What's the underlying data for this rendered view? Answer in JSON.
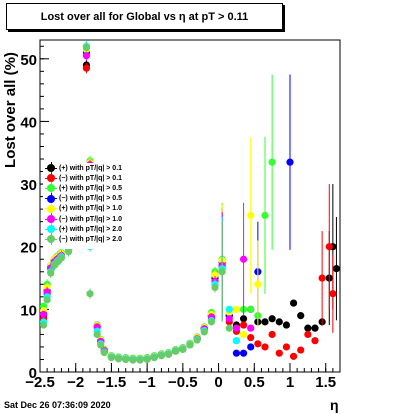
{
  "header": {
    "title": "Lost over all for Global vs   η at pT > 0.11",
    "footer": "Sat Dec 26 07:36:09 2020"
  },
  "chart_data": {
    "type": "scatter",
    "title": "Lost over all for Global vs   η at pT > 0.11",
    "xlabel": "η",
    "ylabel": "Lost over all (%)",
    "xlim": [
      -2.5,
      1.7
    ],
    "ylim": [
      0,
      53
    ],
    "x_ticks": [
      -2.5,
      -2,
      -1.5,
      -1,
      -0.5,
      0,
      0.5,
      1,
      1.5
    ],
    "x_tick_labels": [
      "−2.5",
      "−2",
      "−1.5",
      "−1",
      "−0.5",
      "0",
      "0.5",
      "1",
      "1.5"
    ],
    "y_ticks": [
      0,
      10,
      20,
      30,
      40,
      50
    ],
    "y_tick_labels": [
      "0",
      "10",
      "20",
      "30",
      "40",
      "50"
    ],
    "grid": false,
    "legend_position": "left-middle",
    "series": [
      {
        "name": "(+) with pT/|q| > 0.1",
        "color": "#000000",
        "x": [
          -2.45,
          -2.4,
          -2.35,
          -2.3,
          -2.25,
          -2.2,
          -2.1,
          -1.85,
          -1.8,
          -1.7,
          -1.65,
          -1.6,
          -1.5,
          -1.4,
          -1.3,
          -1.2,
          -1.1,
          -1.0,
          -0.9,
          -0.8,
          -0.7,
          -0.6,
          -0.5,
          -0.4,
          -0.3,
          -0.2,
          -0.1,
          -0.05,
          0.05,
          0.15,
          0.25,
          0.35,
          0.45,
          0.55,
          0.65,
          0.75,
          0.85,
          0.95,
          1.05,
          1.15,
          1.25,
          1.35,
          1.45,
          1.55,
          1.6,
          1.65
        ],
        "y": [
          9,
          13,
          17,
          18,
          18.5,
          19,
          20,
          49,
          33.5,
          7.5,
          5,
          3.5,
          2.5,
          2.3,
          2.2,
          2.1,
          2.1,
          2.2,
          2.5,
          2.8,
          3,
          3.5,
          3.8,
          4.5,
          5.5,
          7,
          9,
          15,
          17,
          9,
          7.5,
          8.5,
          10,
          8,
          8,
          8.5,
          8,
          7.5,
          11,
          9,
          7,
          7,
          8,
          15,
          20,
          16.5
        ]
      },
      {
        "name": "(−) with pT/|q| > 0.1",
        "color": "#ff0000",
        "x": [
          -2.45,
          -2.4,
          -2.35,
          -2.3,
          -2.25,
          -2.2,
          -2.1,
          -1.85,
          -1.8,
          -1.7,
          -1.65,
          -1.6,
          -1.5,
          -1.4,
          -1.3,
          -1.2,
          -1.1,
          -1.0,
          -0.9,
          -0.8,
          -0.7,
          -0.6,
          -0.5,
          -0.4,
          -0.3,
          -0.2,
          -0.1,
          -0.05,
          0.05,
          0.15,
          0.25,
          0.35,
          0.45,
          0.55,
          0.65,
          0.75,
          0.85,
          0.95,
          1.05,
          1.15,
          1.25,
          1.35,
          1.45,
          1.55,
          1.6
        ],
        "y": [
          8.5,
          12.5,
          16.5,
          17.5,
          18,
          18.5,
          19.5,
          48.5,
          33,
          7.2,
          4.8,
          3.4,
          2.4,
          2.2,
          2.1,
          2.0,
          2.0,
          2.1,
          2.4,
          2.7,
          2.9,
          3.4,
          3.7,
          4.4,
          5.3,
          6.8,
          8.5,
          14,
          16.5,
          8,
          6.5,
          7.5,
          5.5,
          4.5,
          4,
          6,
          3,
          4,
          2.5,
          3.5,
          6,
          5,
          15,
          20,
          12.5
        ]
      },
      {
        "name": "(+) with pT/|q| > 0.5",
        "color": "#33ff33",
        "x": [
          -2.45,
          -2.4,
          -2.35,
          -2.3,
          -2.25,
          -2.2,
          -2.1,
          -1.85,
          -1.8,
          -1.7,
          -1.65,
          -1.6,
          -1.5,
          -1.4,
          -1.3,
          -1.2,
          -1.1,
          -1.0,
          -0.9,
          -0.8,
          -0.7,
          -0.6,
          -0.5,
          -0.4,
          -0.3,
          -0.2,
          -0.1,
          -0.05,
          0.05,
          0.15,
          0.25,
          0.35,
          0.45,
          0.55,
          0.65,
          0.75
        ],
        "y": [
          10.5,
          14,
          17,
          18,
          18.5,
          19,
          20,
          52,
          33.7,
          7.5,
          5.2,
          3.6,
          2.6,
          2.4,
          2.3,
          2.2,
          2.2,
          2.3,
          2.6,
          2.9,
          3.1,
          3.6,
          3.9,
          4.6,
          5.6,
          7.2,
          9.5,
          16,
          18,
          10,
          5,
          10,
          10,
          9,
          25,
          33.5
        ]
      },
      {
        "name": "(−) with pT/|q| > 0.5",
        "color": "#0000ff",
        "x": [
          -2.45,
          -2.4,
          -2.35,
          -2.3,
          -2.25,
          -2.2,
          -2.1,
          -1.85,
          -1.8,
          -1.7,
          -1.65,
          -1.6,
          -1.5,
          -1.4,
          -1.3,
          -1.2,
          -1.1,
          -1.0,
          -0.9,
          -0.8,
          -0.7,
          -0.6,
          -0.5,
          -0.4,
          -0.3,
          -0.2,
          -0.1,
          -0.05,
          0.05,
          0.15,
          0.25,
          0.35,
          0.45,
          0.55,
          1.0
        ],
        "y": [
          9.5,
          13,
          16.8,
          17.8,
          18.3,
          18.8,
          19.8,
          51,
          33.2,
          7.3,
          5,
          3.5,
          2.5,
          2.3,
          2.2,
          2.1,
          2.1,
          2.2,
          2.5,
          2.8,
          3,
          3.5,
          3.8,
          4.5,
          5.4,
          7,
          9,
          15.5,
          17.5,
          9,
          3,
          3,
          4,
          16,
          33.5
        ]
      },
      {
        "name": "(+) with pT/|q| > 1.0",
        "color": "#ffff00",
        "x": [
          -2.45,
          -2.4,
          -2.35,
          -2.3,
          -2.25,
          -2.2,
          -2.1,
          -1.85,
          -1.8,
          -1.7,
          -1.65,
          -1.6,
          -1.5,
          -1.4,
          -1.3,
          -1.2,
          -1.1,
          -1.0,
          -0.9,
          -0.8,
          -0.7,
          -0.6,
          -0.5,
          -0.4,
          -0.3,
          -0.2,
          -0.1,
          -0.05,
          0.05,
          0.15,
          0.25,
          0.35,
          0.45,
          0.55
        ],
        "y": [
          9.8,
          13.5,
          17,
          18,
          18.4,
          18.9,
          19.9,
          51.5,
          33.4,
          7.4,
          5.1,
          3.5,
          2.5,
          2.3,
          2.2,
          2.1,
          2.1,
          2.2,
          2.5,
          2.8,
          3,
          3.5,
          3.8,
          4.5,
          5.5,
          7.1,
          9.2,
          15.5,
          17.8,
          9.5,
          10,
          6,
          25,
          14
        ]
      },
      {
        "name": "(−) with pT/|q| > 1.0",
        "color": "#ff00ff",
        "x": [
          -2.45,
          -2.4,
          -2.35,
          -2.3,
          -2.25,
          -2.2,
          -2.1,
          -1.85,
          -1.8,
          -1.7,
          -1.65,
          -1.6,
          -1.5,
          -1.4,
          -1.3,
          -1.2,
          -1.1,
          -1.0,
          -0.9,
          -0.8,
          -0.7,
          -0.6,
          -0.5,
          -0.4,
          -0.3,
          -0.2,
          -0.1,
          -0.05,
          0.05,
          0.15,
          0.25,
          0.35,
          0.45
        ],
        "y": [
          9.2,
          12.8,
          16.6,
          17.6,
          18.1,
          18.6,
          19.6,
          50.5,
          33.1,
          7.2,
          4.9,
          3.4,
          2.4,
          2.2,
          2.1,
          2.0,
          2.0,
          2.1,
          2.4,
          2.7,
          2.9,
          3.4,
          3.7,
          4.4,
          5.3,
          6.9,
          8.8,
          14.5,
          17,
          8.5,
          7,
          18,
          7
        ]
      },
      {
        "name": "(+) with pT/|q| > 2.0",
        "color": "#00ffff",
        "x": [
          -2.45,
          -2.4,
          -2.35,
          -2.3,
          -2.25,
          -2.2,
          -2.1,
          -1.85,
          -1.8,
          -1.7,
          -1.65,
          -1.6,
          -1.5,
          -1.4,
          -1.3,
          -1.2,
          -1.1,
          -1.0,
          -0.9,
          -0.8,
          -0.7,
          -0.6,
          -0.5,
          -0.4,
          -0.3,
          -0.2,
          -0.1,
          -0.05,
          0.05,
          0.15,
          0.25
        ],
        "y": [
          8,
          12,
          16,
          17.2,
          17.8,
          18.4,
          19.4,
          52,
          20,
          6.5,
          4.5,
          3.2,
          2.4,
          2.2,
          2.1,
          2.0,
          2.0,
          2.1,
          2.4,
          2.7,
          2.9,
          3.4,
          3.7,
          4.4,
          5.2,
          6.6,
          8.2,
          14,
          16.5,
          10,
          5
        ]
      },
      {
        "name": "(−) with pT/|q| > 2.0",
        "color": "#66cc66",
        "x": [
          -2.45,
          -2.4,
          -2.35,
          -2.3,
          -2.25,
          -2.2,
          -2.1,
          -1.85,
          -1.8,
          -1.7,
          -1.65,
          -1.6,
          -1.5,
          -1.4,
          -1.3,
          -1.2,
          -1.1,
          -1.0,
          -0.9,
          -0.8,
          -0.7,
          -0.6,
          -0.5,
          -0.4,
          -0.3,
          -0.2,
          -0.1,
          -0.05,
          0.05,
          0.15
        ],
        "y": [
          7.5,
          11.5,
          15.8,
          17,
          17.6,
          18.2,
          19.2,
          51.8,
          12.5,
          6,
          4.3,
          3.1,
          2.3,
          2.1,
          2.0,
          1.9,
          1.9,
          2.0,
          2.3,
          2.6,
          2.8,
          3.3,
          3.6,
          4.3,
          5.1,
          6.4,
          8,
          13.5,
          16,
          7
        ]
      }
    ]
  }
}
